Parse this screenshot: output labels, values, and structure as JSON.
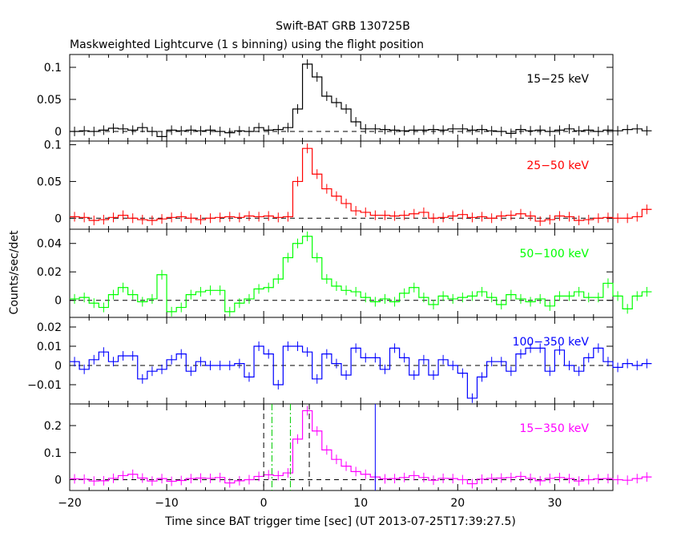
{
  "title": "Swift-BAT GRB 130725B",
  "subtitle": "Maskweighted Lightcurve (1 s binning) using the flight position",
  "xlabel": "Time since BAT trigger time [sec] (UT 2013-07-25T17:39:27.5)",
  "ylabel": "Counts/sec/det",
  "colors": {
    "axes": "#000000",
    "panel_15_25": "#000000",
    "panel_25_50": "#ff0000",
    "panel_50_100": "#00ff00",
    "panel_100_350": "#0000ff",
    "panel_15_350": "#ff00ff",
    "marker_t0": "#000000",
    "marker_t50": "#00cc00",
    "marker_t_end": "#0000ff"
  },
  "chart_data": {
    "type": "line",
    "xlim": [
      -20,
      36
    ],
    "x_ticks": [
      -20,
      -10,
      0,
      10,
      20,
      30
    ],
    "x_tick_labels": [
      "−20",
      "−10",
      "0",
      "10",
      "20",
      "30"
    ],
    "bin_width_s": 1,
    "x_start": -20,
    "panels": [
      {
        "label": "15−25 keV",
        "color_key": "panel_15_25",
        "ylim": [
          -0.015,
          0.12
        ],
        "y_ticks": [
          0,
          0.05,
          0.1
        ],
        "y_tick_labels": [
          "0",
          "0.05",
          "0.1"
        ],
        "values": [
          0.0,
          0.001,
          0.0,
          0.002,
          0.005,
          0.004,
          0.002,
          0.006,
          0.0,
          -0.008,
          0.002,
          0.001,
          0.002,
          0.001,
          0.002,
          0.0,
          -0.002,
          0.001,
          0.0,
          0.006,
          0.002,
          0.003,
          0.006,
          0.035,
          0.105,
          0.085,
          0.055,
          0.045,
          0.035,
          0.015,
          0.004,
          0.004,
          0.003,
          0.002,
          0.001,
          0.002,
          0.002,
          0.003,
          0.002,
          0.004,
          0.004,
          0.002,
          0.003,
          0.001,
          0.0,
          -0.003,
          0.003,
          0.001,
          0.002,
          0.0,
          0.002,
          0.004,
          0.001,
          0.002,
          0.0,
          0.002,
          0.001,
          0.003,
          0.004,
          0.001
        ]
      },
      {
        "label": "25−50 keV",
        "color_key": "panel_25_50",
        "ylim": [
          -0.015,
          0.105
        ],
        "y_ticks": [
          0,
          0.05,
          0.1
        ],
        "y_tick_labels": [
          "0",
          "0.05",
          "0.1"
        ],
        "values": [
          0.002,
          0.001,
          -0.003,
          -0.002,
          0.001,
          0.004,
          0.0,
          -0.002,
          -0.003,
          -0.001,
          0.001,
          0.002,
          0.0,
          -0.002,
          0.0,
          0.001,
          0.002,
          0.001,
          0.003,
          0.002,
          0.003,
          0.001,
          0.002,
          0.05,
          0.095,
          0.06,
          0.04,
          0.03,
          0.02,
          0.01,
          0.008,
          0.004,
          0.004,
          0.003,
          0.004,
          0.006,
          0.008,
          0.0,
          0.001,
          0.003,
          0.005,
          0.001,
          0.002,
          0.0,
          0.003,
          0.004,
          0.006,
          0.003,
          -0.004,
          -0.002,
          0.003,
          0.002,
          -0.003,
          -0.002,
          0.0,
          0.001,
          0.0,
          0.0,
          0.002,
          0.012
        ]
      },
      {
        "label": "50−100 keV",
        "color_key": "panel_50_100",
        "ylim": [
          -0.012,
          0.05
        ],
        "y_ticks": [
          0,
          0.02,
          0.04
        ],
        "y_tick_labels": [
          "0",
          "0.02",
          "0.04"
        ],
        "values": [
          0.001,
          0.002,
          -0.002,
          -0.005,
          0.004,
          0.009,
          0.004,
          -0.001,
          0.001,
          0.018,
          -0.008,
          -0.005,
          0.004,
          0.006,
          0.007,
          0.007,
          -0.008,
          -0.002,
          0.001,
          0.008,
          0.009,
          0.015,
          0.03,
          0.04,
          0.045,
          0.03,
          0.015,
          0.01,
          0.007,
          0.006,
          0.002,
          -0.001,
          0.001,
          -0.001,
          0.005,
          0.009,
          0.002,
          -0.003,
          0.003,
          0.001,
          0.002,
          0.003,
          0.006,
          0.002,
          -0.003,
          0.004,
          0.001,
          -0.001,
          0.001,
          -0.004,
          0.003,
          0.003,
          0.006,
          0.002,
          0.002,
          0.012,
          0.003,
          -0.006,
          0.003,
          0.006
        ]
      },
      {
        "label": "100−350 keV",
        "color_key": "panel_100_350",
        "ylim": [
          -0.02,
          0.025
        ],
        "y_ticks": [
          -0.01,
          0,
          0.01,
          0.02
        ],
        "y_tick_labels": [
          "−0.01",
          "0",
          "0.01",
          "0.02"
        ],
        "values": [
          0.002,
          -0.002,
          0.003,
          0.007,
          0.002,
          0.005,
          0.005,
          -0.007,
          -0.003,
          -0.002,
          0.003,
          0.006,
          -0.003,
          0.002,
          0.0,
          0.0,
          0.0,
          0.001,
          -0.006,
          0.01,
          0.006,
          -0.01,
          0.01,
          0.01,
          0.007,
          -0.007,
          0.006,
          0.001,
          -0.005,
          0.009,
          0.004,
          0.004,
          -0.002,
          0.009,
          0.004,
          -0.005,
          0.003,
          -0.005,
          0.003,
          0.0,
          -0.004,
          -0.017,
          -0.006,
          0.002,
          0.002,
          -0.003,
          0.006,
          0.009,
          0.009,
          -0.003,
          0.008,
          0.0,
          -0.003,
          0.004,
          0.009,
          0.002,
          -0.001,
          0.001,
          0.0,
          0.001
        ]
      },
      {
        "label": "15−350 keV",
        "color_key": "panel_15_350",
        "ylim": [
          -0.04,
          0.28
        ],
        "y_ticks": [
          0,
          0.1,
          0.2
        ],
        "y_tick_labels": [
          "0",
          "0.1",
          "0.2"
        ],
        "values": [
          0.003,
          0.002,
          -0.005,
          -0.004,
          0.005,
          0.015,
          0.02,
          0.006,
          -0.005,
          0.004,
          -0.006,
          -0.003,
          0.004,
          0.006,
          0.005,
          0.008,
          -0.012,
          -0.004,
          0.0,
          0.012,
          0.018,
          0.015,
          0.025,
          0.15,
          0.255,
          0.18,
          0.11,
          0.075,
          0.05,
          0.03,
          0.02,
          0.01,
          0.003,
          0.004,
          0.008,
          0.015,
          0.008,
          -0.002,
          0.005,
          0.004,
          0.0,
          -0.015,
          0.002,
          0.005,
          0.006,
          0.008,
          0.012,
          0.005,
          -0.004,
          0.005,
          0.008,
          0.004,
          -0.005,
          0.0,
          0.003,
          0.004,
          0.0,
          -0.002,
          0.004,
          0.01
        ],
        "markers": [
          {
            "x": 0.0,
            "style": "dashed",
            "color_key": "marker_t0"
          },
          {
            "x": 4.7,
            "style": "dashed",
            "color_key": "marker_t0"
          },
          {
            "x": 0.85,
            "style": "dashdot",
            "color_key": "marker_t50"
          },
          {
            "x": 2.75,
            "style": "dashdot",
            "color_key": "marker_t50"
          },
          {
            "x": 11.5,
            "style": "solid",
            "color_key": "marker_t_end"
          }
        ]
      }
    ]
  }
}
